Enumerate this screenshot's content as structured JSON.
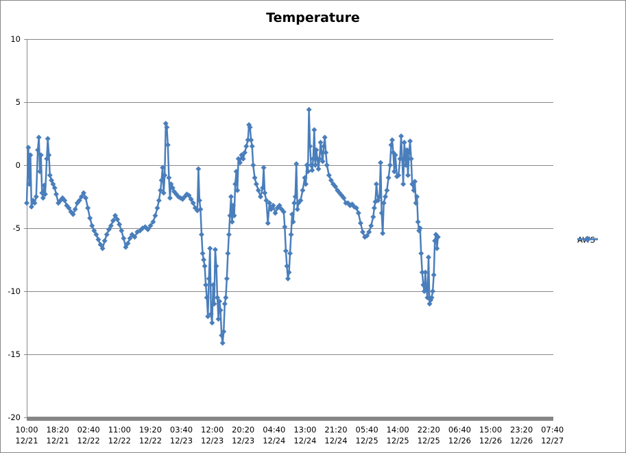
{
  "chart_data": {
    "type": "line",
    "title": "Temperature",
    "xlabel": "",
    "ylabel": "",
    "ylim": [
      -20,
      10
    ],
    "yticks": [
      10,
      5,
      0,
      -5,
      -10,
      -15,
      -20
    ],
    "grid": true,
    "legend_position": "right",
    "x_tick_labels": [
      {
        "time": "10:00",
        "date": "12/21"
      },
      {
        "time": "18:20",
        "date": "12/21"
      },
      {
        "time": "02:40",
        "date": "12/22"
      },
      {
        "time": "11:00",
        "date": "12/22"
      },
      {
        "time": "19:20",
        "date": "12/22"
      },
      {
        "time": "03:40",
        "date": "12/23"
      },
      {
        "time": "12:00",
        "date": "12/23"
      },
      {
        "time": "20:20",
        "date": "12/23"
      },
      {
        "time": "04:40",
        "date": "12/24"
      },
      {
        "time": "13:00",
        "date": "12/24"
      },
      {
        "time": "21:20",
        "date": "12/24"
      },
      {
        "time": "05:40",
        "date": "12/25"
      },
      {
        "time": "14:00",
        "date": "12/25"
      },
      {
        "time": "22:20",
        "date": "12/25"
      },
      {
        "time": "06:40",
        "date": "12/26"
      },
      {
        "time": "15:00",
        "date": "12/26"
      },
      {
        "time": "23:20",
        "date": "12/26"
      },
      {
        "time": "07:40",
        "date": "12/27"
      }
    ],
    "series": [
      {
        "name": "AWS",
        "color": "#4a7ebb",
        "marker": "diamond",
        "points_note": "x as fraction of time axis (0 = 10:00 12/21, 1 = ~08:30 12/27), y in degrees",
        "points": [
          [
            0.0,
            -3.0
          ],
          [
            0.003,
            1.4
          ],
          [
            0.005,
            -1.5
          ],
          [
            0.007,
            0.8
          ],
          [
            0.009,
            -3.3
          ],
          [
            0.012,
            -2.8
          ],
          [
            0.015,
            -3.0
          ],
          [
            0.018,
            -2.5
          ],
          [
            0.021,
            1.2
          ],
          [
            0.023,
            2.2
          ],
          [
            0.025,
            -0.5
          ],
          [
            0.027,
            0.8
          ],
          [
            0.029,
            -2.2
          ],
          [
            0.031,
            -2.6
          ],
          [
            0.033,
            -1.6
          ],
          [
            0.035,
            -2.3
          ],
          [
            0.038,
            0.5
          ],
          [
            0.04,
            2.1
          ],
          [
            0.042,
            0.8
          ],
          [
            0.044,
            -0.8
          ],
          [
            0.047,
            -1.2
          ],
          [
            0.05,
            -1.5
          ],
          [
            0.053,
            -1.8
          ],
          [
            0.056,
            -2.3
          ],
          [
            0.06,
            -3.0
          ],
          [
            0.064,
            -2.8
          ],
          [
            0.068,
            -2.6
          ],
          [
            0.072,
            -2.8
          ],
          [
            0.076,
            -3.2
          ],
          [
            0.08,
            -3.4
          ],
          [
            0.084,
            -3.7
          ],
          [
            0.088,
            -3.9
          ],
          [
            0.092,
            -3.5
          ],
          [
            0.096,
            -3.0
          ],
          [
            0.1,
            -2.8
          ],
          [
            0.104,
            -2.5
          ],
          [
            0.108,
            -2.2
          ],
          [
            0.112,
            -2.6
          ],
          [
            0.116,
            -3.4
          ],
          [
            0.12,
            -4.2
          ],
          [
            0.124,
            -4.8
          ],
          [
            0.128,
            -5.2
          ],
          [
            0.132,
            -5.5
          ],
          [
            0.136,
            -5.9
          ],
          [
            0.14,
            -6.3
          ],
          [
            0.144,
            -6.6
          ],
          [
            0.148,
            -6.0
          ],
          [
            0.152,
            -5.5
          ],
          [
            0.156,
            -5.1
          ],
          [
            0.16,
            -4.8
          ],
          [
            0.164,
            -4.4
          ],
          [
            0.168,
            -4.0
          ],
          [
            0.172,
            -4.3
          ],
          [
            0.176,
            -4.7
          ],
          [
            0.18,
            -5.2
          ],
          [
            0.184,
            -5.8
          ],
          [
            0.188,
            -6.5
          ],
          [
            0.192,
            -6.2
          ],
          [
            0.196,
            -5.8
          ],
          [
            0.2,
            -5.5
          ],
          [
            0.205,
            -5.7
          ],
          [
            0.21,
            -5.3
          ],
          [
            0.215,
            -5.2
          ],
          [
            0.22,
            -5.0
          ],
          [
            0.225,
            -4.9
          ],
          [
            0.23,
            -5.1
          ],
          [
            0.235,
            -4.8
          ],
          [
            0.24,
            -4.5
          ],
          [
            0.244,
            -4.0
          ],
          [
            0.248,
            -3.4
          ],
          [
            0.251,
            -2.8
          ],
          [
            0.254,
            -2.0
          ],
          [
            0.256,
            -1.2
          ],
          [
            0.258,
            -0.2
          ],
          [
            0.26,
            -2.2
          ],
          [
            0.262,
            -0.8
          ],
          [
            0.264,
            3.3
          ],
          [
            0.266,
            3.0
          ],
          [
            0.268,
            1.6
          ],
          [
            0.27,
            -1.0
          ],
          [
            0.272,
            -2.6
          ],
          [
            0.274,
            -1.5
          ],
          [
            0.277,
            -1.8
          ],
          [
            0.28,
            -2.1
          ],
          [
            0.284,
            -2.3
          ],
          [
            0.288,
            -2.5
          ],
          [
            0.292,
            -2.6
          ],
          [
            0.296,
            -2.7
          ],
          [
            0.3,
            -2.5
          ],
          [
            0.304,
            -2.3
          ],
          [
            0.308,
            -2.4
          ],
          [
            0.312,
            -2.7
          ],
          [
            0.316,
            -3.0
          ],
          [
            0.32,
            -3.4
          ],
          [
            0.324,
            -3.6
          ],
          [
            0.326,
            -0.3
          ],
          [
            0.328,
            -2.8
          ],
          [
            0.33,
            -3.5
          ],
          [
            0.332,
            -5.5
          ],
          [
            0.334,
            -7.0
          ],
          [
            0.336,
            -7.5
          ],
          [
            0.338,
            -8.0
          ],
          [
            0.34,
            -9.5
          ],
          [
            0.342,
            -10.5
          ],
          [
            0.344,
            -12.0
          ],
          [
            0.346,
            -9.0
          ],
          [
            0.348,
            -6.6
          ],
          [
            0.35,
            -11.8
          ],
          [
            0.352,
            -12.5
          ],
          [
            0.354,
            -9.5
          ],
          [
            0.356,
            -11.0
          ],
          [
            0.358,
            -6.7
          ],
          [
            0.36,
            -8.0
          ],
          [
            0.362,
            -10.5
          ],
          [
            0.364,
            -12.2
          ],
          [
            0.366,
            -10.8
          ],
          [
            0.368,
            -11.5
          ],
          [
            0.37,
            -13.5
          ],
          [
            0.372,
            -14.1
          ],
          [
            0.374,
            -13.2
          ],
          [
            0.376,
            -11.0
          ],
          [
            0.378,
            -10.5
          ],
          [
            0.38,
            -9.0
          ],
          [
            0.382,
            -7.0
          ],
          [
            0.384,
            -5.5
          ],
          [
            0.386,
            -4.0
          ],
          [
            0.388,
            -2.5
          ],
          [
            0.39,
            -4.5
          ],
          [
            0.392,
            -3.2
          ],
          [
            0.394,
            -4.0
          ],
          [
            0.396,
            -1.5
          ],
          [
            0.398,
            -0.5
          ],
          [
            0.4,
            -2.0
          ],
          [
            0.402,
            0.5
          ],
          [
            0.405,
            0.2
          ],
          [
            0.408,
            0.8
          ],
          [
            0.411,
            0.5
          ],
          [
            0.414,
            1.0
          ],
          [
            0.417,
            1.5
          ],
          [
            0.42,
            2.0
          ],
          [
            0.422,
            3.2
          ],
          [
            0.424,
            3.0
          ],
          [
            0.426,
            2.0
          ],
          [
            0.428,
            1.5
          ],
          [
            0.43,
            0.0
          ],
          [
            0.433,
            -1.0
          ],
          [
            0.436,
            -1.5
          ],
          [
            0.44,
            -2.0
          ],
          [
            0.444,
            -2.5
          ],
          [
            0.448,
            -1.8
          ],
          [
            0.45,
            -0.2
          ],
          [
            0.452,
            -2.2
          ],
          [
            0.455,
            -2.8
          ],
          [
            0.458,
            -4.6
          ],
          [
            0.461,
            -3.0
          ],
          [
            0.464,
            -3.5
          ],
          [
            0.468,
            -3.2
          ],
          [
            0.472,
            -3.8
          ],
          [
            0.476,
            -3.4
          ],
          [
            0.48,
            -3.2
          ],
          [
            0.484,
            -3.5
          ],
          [
            0.488,
            -3.7
          ],
          [
            0.49,
            -4.9
          ],
          [
            0.492,
            -6.8
          ],
          [
            0.494,
            -8.0
          ],
          [
            0.496,
            -9.0
          ],
          [
            0.498,
            -8.5
          ],
          [
            0.5,
            -7.0
          ],
          [
            0.502,
            -5.5
          ],
          [
            0.504,
            -3.9
          ],
          [
            0.506,
            -4.5
          ],
          [
            0.508,
            -3.0
          ],
          [
            0.51,
            -2.5
          ],
          [
            0.512,
            0.1
          ],
          [
            0.514,
            -3.5
          ],
          [
            0.516,
            -3.0
          ],
          [
            0.52,
            -2.8
          ],
          [
            0.524,
            -2.0
          ],
          [
            0.528,
            -1.0
          ],
          [
            0.53,
            -1.5
          ],
          [
            0.532,
            0.0
          ],
          [
            0.534,
            -0.5
          ],
          [
            0.536,
            4.4
          ],
          [
            0.538,
            1.5
          ],
          [
            0.54,
            0.0
          ],
          [
            0.542,
            -0.4
          ],
          [
            0.544,
            0.5
          ],
          [
            0.546,
            2.8
          ],
          [
            0.548,
            0.0
          ],
          [
            0.55,
            1.2
          ],
          [
            0.552,
            0.5
          ],
          [
            0.554,
            -0.3
          ],
          [
            0.556,
            0.5
          ],
          [
            0.558,
            1.8
          ],
          [
            0.56,
            1.0
          ],
          [
            0.562,
            0.3
          ],
          [
            0.564,
            1.5
          ],
          [
            0.566,
            2.2
          ],
          [
            0.568,
            1.0
          ],
          [
            0.57,
            0.0
          ],
          [
            0.574,
            -0.8
          ],
          [
            0.578,
            -1.2
          ],
          [
            0.582,
            -1.5
          ],
          [
            0.586,
            -1.7
          ],
          [
            0.59,
            -2.0
          ],
          [
            0.594,
            -2.2
          ],
          [
            0.598,
            -2.4
          ],
          [
            0.602,
            -2.6
          ],
          [
            0.606,
            -3.0
          ],
          [
            0.61,
            -3.0
          ],
          [
            0.614,
            -3.2
          ],
          [
            0.618,
            -3.1
          ],
          [
            0.622,
            -3.3
          ],
          [
            0.626,
            -3.4
          ],
          [
            0.63,
            -3.8
          ],
          [
            0.634,
            -4.6
          ],
          [
            0.638,
            -5.3
          ],
          [
            0.642,
            -5.7
          ],
          [
            0.646,
            -5.6
          ],
          [
            0.65,
            -5.3
          ],
          [
            0.654,
            -4.8
          ],
          [
            0.658,
            -4.1
          ],
          [
            0.66,
            -3.4
          ],
          [
            0.662,
            -2.9
          ],
          [
            0.664,
            -1.5
          ],
          [
            0.667,
            -2.8
          ],
          [
            0.67,
            -2.5
          ],
          [
            0.672,
            0.2
          ],
          [
            0.674,
            -3.8
          ],
          [
            0.676,
            -5.4
          ],
          [
            0.678,
            -3.0
          ],
          [
            0.681,
            -2.5
          ],
          [
            0.684,
            -2.0
          ],
          [
            0.687,
            -1.0
          ],
          [
            0.69,
            0.0
          ],
          [
            0.692,
            1.6
          ],
          [
            0.694,
            2.0
          ],
          [
            0.696,
            1.0
          ],
          [
            0.698,
            -0.5
          ],
          [
            0.7,
            0.8
          ],
          [
            0.703,
            -0.9
          ],
          [
            0.706,
            -0.8
          ],
          [
            0.709,
            0.5
          ],
          [
            0.711,
            2.3
          ],
          [
            0.713,
            0.5
          ],
          [
            0.715,
            -1.5
          ],
          [
            0.717,
            1.8
          ],
          [
            0.72,
            0.0
          ],
          [
            0.722,
            1.2
          ],
          [
            0.724,
            -0.8
          ],
          [
            0.726,
            1.0
          ],
          [
            0.728,
            1.9
          ],
          [
            0.73,
            0.5
          ],
          [
            0.732,
            -1.5
          ],
          [
            0.735,
            -2.0
          ],
          [
            0.737,
            -1.3
          ],
          [
            0.739,
            -3.0
          ],
          [
            0.741,
            -2.5
          ],
          [
            0.743,
            -4.5
          ],
          [
            0.745,
            -5.2
          ],
          [
            0.747,
            -5.0
          ],
          [
            0.749,
            -7.0
          ],
          [
            0.751,
            -8.5
          ],
          [
            0.753,
            -9.5
          ],
          [
            0.755,
            -10.0
          ],
          [
            0.757,
            -8.5
          ],
          [
            0.759,
            -9.8
          ],
          [
            0.761,
            -10.5
          ],
          [
            0.763,
            -7.3
          ],
          [
            0.765,
            -11.0
          ],
          [
            0.767,
            -10.7
          ],
          [
            0.769,
            -10.5
          ],
          [
            0.771,
            -10.0
          ],
          [
            0.773,
            -8.7
          ],
          [
            0.775,
            -6.0
          ],
          [
            0.777,
            -5.5
          ],
          [
            0.779,
            -6.6
          ],
          [
            0.781,
            -5.7
          ]
        ]
      }
    ]
  },
  "legend": {
    "label": "AWS"
  }
}
